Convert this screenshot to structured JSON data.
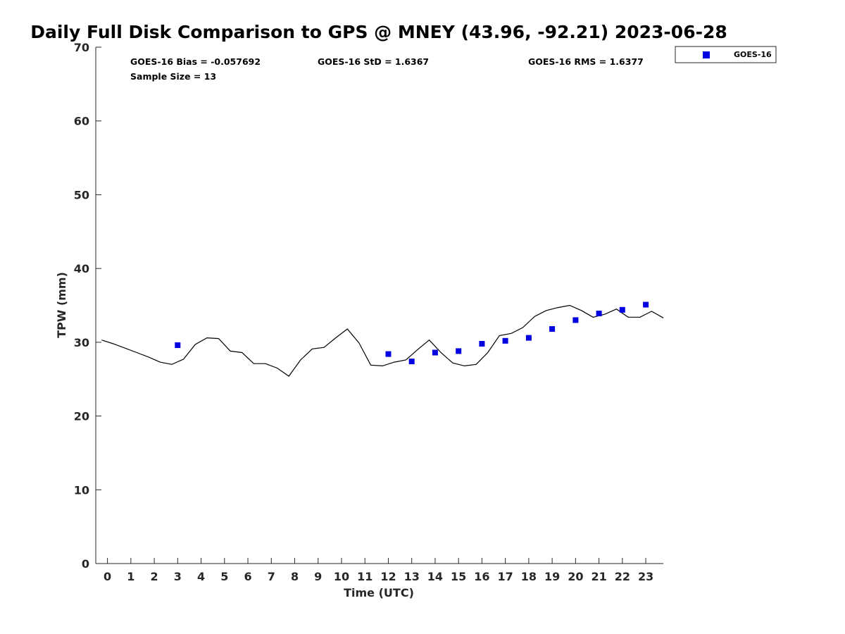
{
  "chart_data": {
    "type": "scatter",
    "title": "Daily Full Disk Comparison to GPS @ MNEY (43.96, -92.21) 2023-06-28",
    "xlabel": "Time (UTC)",
    "ylabel": "TPW (mm)",
    "xlim": [
      -0.5,
      23.75
    ],
    "ylim": [
      0,
      70
    ],
    "x_ticks": [
      0,
      1,
      2,
      3,
      4,
      5,
      6,
      7,
      8,
      9,
      10,
      11,
      12,
      13,
      14,
      15,
      16,
      17,
      18,
      19,
      20,
      21,
      22,
      23
    ],
    "y_ticks": [
      0,
      10,
      20,
      30,
      40,
      50,
      60,
      70
    ],
    "grid": false,
    "legend_position": "top-right, outside plot",
    "stats": {
      "bias": "GOES-16 Bias = -0.057692",
      "std": "GOES-16 StD = 1.6367",
      "rms": "GOES-16 RMS = 1.6377",
      "sample_size": "Sample Size = 13"
    },
    "gps_series": {
      "color": "#000000",
      "x": [
        -0.25,
        0.25,
        0.75,
        1.25,
        1.75,
        2.25,
        2.75,
        3.25,
        3.75,
        4.25,
        4.75,
        5.25,
        5.75,
        6.25,
        6.75,
        7.25,
        7.75,
        8.25,
        8.75,
        9.25,
        9.75,
        10.25,
        10.75,
        11.25,
        11.75,
        12.25,
        12.75,
        13.25,
        13.75,
        14.25,
        14.75,
        15.25,
        15.75,
        16.25,
        16.75,
        17.25,
        17.75,
        18.25,
        18.75,
        19.25,
        19.75,
        20.25,
        20.75,
        21.25,
        21.75,
        22.25,
        22.75,
        23.25,
        23.75
      ],
      "y": [
        30.3,
        29.8,
        29.2,
        28.6,
        28.0,
        27.3,
        27.0,
        27.7,
        29.7,
        30.6,
        30.5,
        28.8,
        28.6,
        27.1,
        27.1,
        26.5,
        25.4,
        27.6,
        29.1,
        29.3,
        30.6,
        31.8,
        29.9,
        26.9,
        26.8,
        27.3,
        27.6,
        29.0,
        30.3,
        28.6,
        27.2,
        26.8,
        27.0,
        28.6,
        30.9,
        31.2,
        32.0,
        33.5,
        34.3,
        34.7,
        35.0,
        34.3,
        33.4,
        33.8,
        34.5,
        33.4,
        33.4,
        34.2,
        33.3
      ]
    },
    "series": [
      {
        "name": "GOES-16",
        "color": "#0000e0",
        "x": [
          3,
          12,
          13,
          14,
          15,
          16,
          17,
          18,
          19,
          20,
          21,
          22,
          23
        ],
        "y": [
          29.6,
          28.4,
          27.4,
          28.6,
          28.8,
          29.8,
          30.2,
          30.6,
          31.8,
          33.0,
          33.9,
          34.4,
          35.1
        ]
      }
    ]
  }
}
